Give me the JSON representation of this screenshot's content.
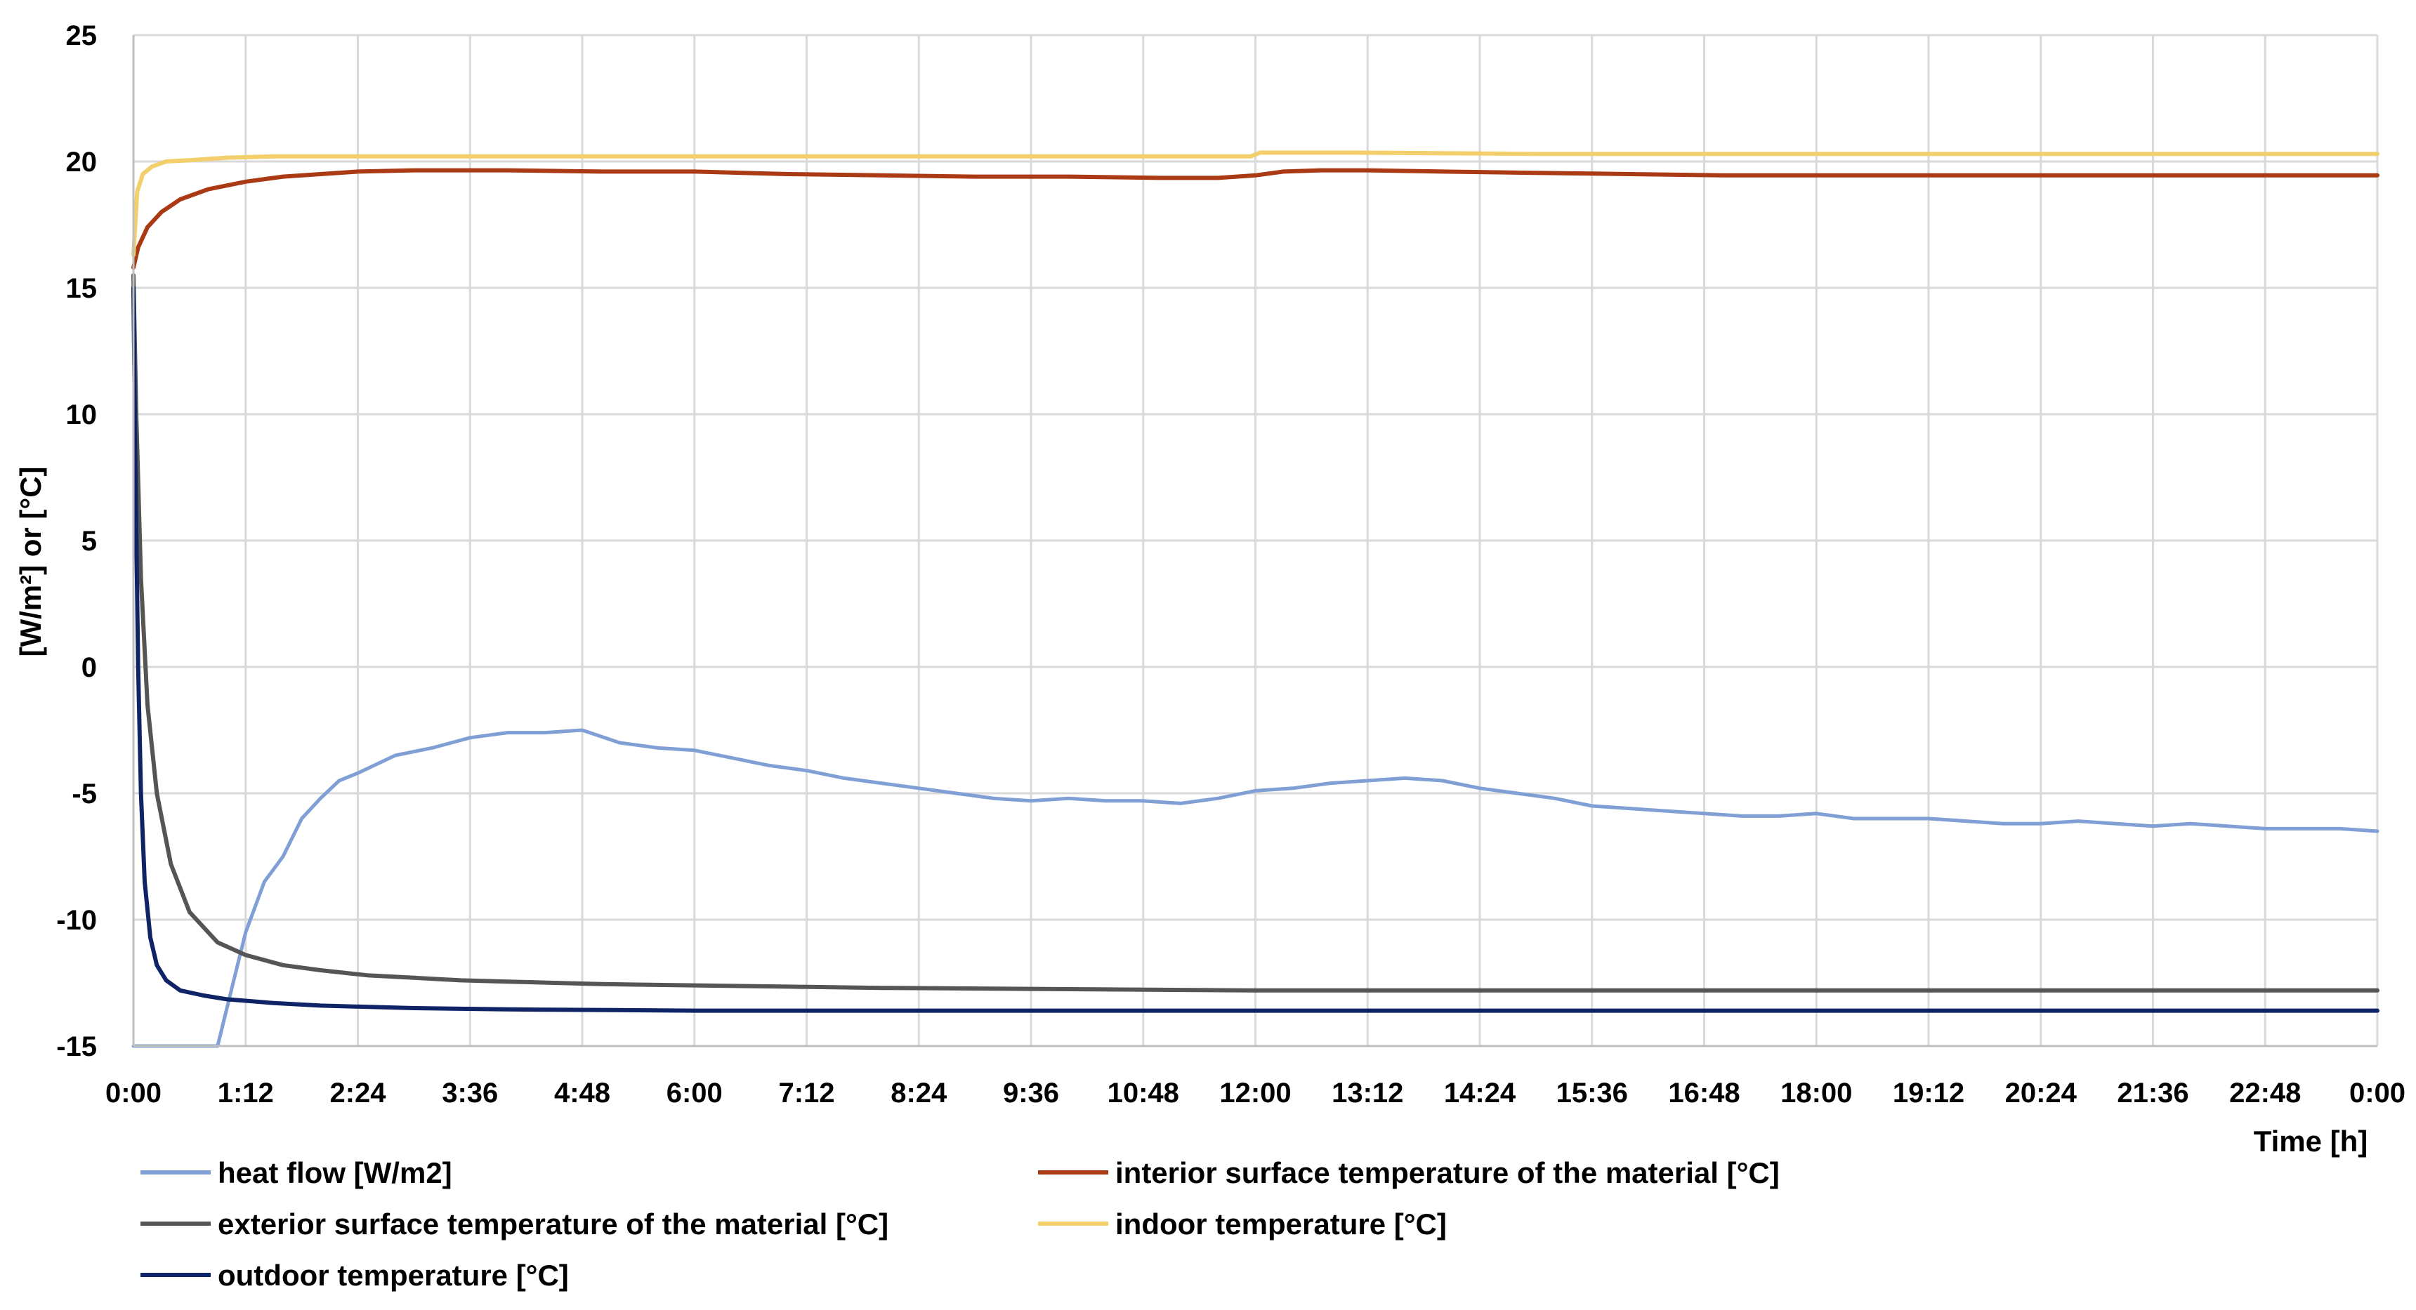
{
  "chart_data": {
    "type": "line",
    "title": "",
    "xlabel": "Time [h]",
    "ylabel": "[W/m²] or [°C]",
    "ylim": [
      -15,
      25
    ],
    "y_ticks": [
      25,
      20,
      15,
      10,
      5,
      0,
      -5,
      -10,
      -15
    ],
    "y_tick_labels": [
      "25",
      "20",
      "15",
      "10",
      "5",
      "0",
      "-5",
      "-10",
      "-15"
    ],
    "xlim_hours": [
      0,
      24
    ],
    "x_ticks_hours": [
      0,
      1.2,
      2.4,
      3.6,
      4.8,
      6,
      7.2,
      8.4,
      9.6,
      10.8,
      12,
      13.2,
      14.4,
      15.6,
      16.8,
      18,
      19.2,
      20.4,
      21.6,
      22.8,
      24
    ],
    "x_tick_labels": [
      "0:00",
      "1:12",
      "2:24",
      "3:36",
      "4:48",
      "6:00",
      "7:12",
      "8:24",
      "9:36",
      "10:48",
      "12:00",
      "13:12",
      "14:24",
      "15:36",
      "16:48",
      "18:00",
      "19:12",
      "20:24",
      "21:36",
      "22:48",
      "0:00"
    ],
    "grid": true,
    "legend_position": "bottom",
    "series": [
      {
        "name": "heat flow [W/m2]",
        "color": "#7f9fd5",
        "x": [
          0,
          0.9,
          1.0,
          1.1,
          1.2,
          1.4,
          1.6,
          1.8,
          2.0,
          2.2,
          2.4,
          2.8,
          3.2,
          3.6,
          4.0,
          4.4,
          4.8,
          5.2,
          5.6,
          6.0,
          6.4,
          6.8,
          7.2,
          7.6,
          8.0,
          8.4,
          8.8,
          9.2,
          9.6,
          10.0,
          10.4,
          10.8,
          11.2,
          11.6,
          12.0,
          12.4,
          12.8,
          13.2,
          13.6,
          14.0,
          14.4,
          14.8,
          15.2,
          15.6,
          16.0,
          16.4,
          16.8,
          17.2,
          17.6,
          18.0,
          18.4,
          18.8,
          19.2,
          19.6,
          20.0,
          20.4,
          20.8,
          21.2,
          21.6,
          22.0,
          22.4,
          22.8,
          23.2,
          23.6,
          24.0
        ],
        "y": [
          -15,
          -15,
          -13.5,
          -12,
          -10.5,
          -8.5,
          -7.5,
          -6,
          -5.2,
          -4.5,
          -4.2,
          -3.5,
          -3.2,
          -2.8,
          -2.6,
          -2.6,
          -2.5,
          -3.0,
          -3.2,
          -3.3,
          -3.6,
          -3.9,
          -4.1,
          -4.4,
          -4.6,
          -4.8,
          -5.0,
          -5.2,
          -5.3,
          -5.2,
          -5.3,
          -5.3,
          -5.4,
          -5.2,
          -4.9,
          -4.8,
          -4.6,
          -4.5,
          -4.4,
          -4.5,
          -4.8,
          -5.0,
          -5.2,
          -5.5,
          -5.6,
          -5.7,
          -5.8,
          -5.9,
          -5.9,
          -5.8,
          -6.0,
          -6.0,
          -6.0,
          -6.1,
          -6.2,
          -6.2,
          -6.1,
          -6.2,
          -6.3,
          -6.2,
          -6.3,
          -6.4,
          -6.4,
          -6.4,
          -6.5
        ]
      },
      {
        "name": "interior surface temperature of the material [°C]",
        "color": "#a93a14",
        "x": [
          0,
          0.05,
          0.15,
          0.3,
          0.5,
          0.8,
          1.2,
          1.6,
          2.0,
          2.4,
          3.0,
          4.0,
          5.0,
          6.0,
          7.0,
          8.0,
          9.0,
          10.0,
          11.0,
          11.6,
          12.0,
          12.3,
          12.7,
          13.2,
          14.0,
          15.0,
          16.0,
          17.0,
          18.0,
          19.0,
          20.0,
          21.0,
          22.0,
          23.0,
          24.0
        ],
        "y": [
          15.8,
          16.6,
          17.4,
          18.0,
          18.5,
          18.9,
          19.2,
          19.4,
          19.5,
          19.6,
          19.65,
          19.65,
          19.6,
          19.6,
          19.5,
          19.45,
          19.4,
          19.4,
          19.35,
          19.35,
          19.45,
          19.6,
          19.65,
          19.65,
          19.6,
          19.55,
          19.5,
          19.45,
          19.45,
          19.45,
          19.45,
          19.45,
          19.45,
          19.45,
          19.45
        ]
      },
      {
        "name": "exterior surface temperature of the material [°C]",
        "color": "#555555",
        "x": [
          0,
          0.03,
          0.08,
          0.15,
          0.25,
          0.4,
          0.6,
          0.9,
          1.2,
          1.6,
          2.0,
          2.5,
          3.0,
          3.5,
          4.0,
          5.0,
          6.0,
          7.0,
          8.0,
          10.0,
          12.0,
          14.0,
          16.0,
          18.0,
          20.0,
          22.0,
          24.0
        ],
        "y": [
          15.5,
          10.0,
          3.5,
          -1.5,
          -5.0,
          -7.8,
          -9.7,
          -10.9,
          -11.4,
          -11.8,
          -12.0,
          -12.2,
          -12.3,
          -12.4,
          -12.45,
          -12.55,
          -12.6,
          -12.65,
          -12.7,
          -12.75,
          -12.8,
          -12.8,
          -12.8,
          -12.8,
          -12.8,
          -12.8,
          -12.8
        ]
      },
      {
        "name": "indoor temperature [°C]",
        "color": "#f2cf6b",
        "x": [
          0,
          0.04,
          0.1,
          0.2,
          0.35,
          0.6,
          1.0,
          1.5,
          2.0,
          3.0,
          4.0,
          6.0,
          8.0,
          10.0,
          11.95,
          12.05,
          13.0,
          15.0,
          18.0,
          21.0,
          24.0
        ],
        "y": [
          16.3,
          18.8,
          19.5,
          19.8,
          20.0,
          20.05,
          20.15,
          20.2,
          20.2,
          20.2,
          20.2,
          20.2,
          20.2,
          20.2,
          20.2,
          20.35,
          20.35,
          20.3,
          20.3,
          20.3,
          20.3
        ]
      },
      {
        "name": "outdoor temperature [°C]",
        "color": "#0f2466",
        "x": [
          0,
          0.02,
          0.05,
          0.08,
          0.12,
          0.18,
          0.25,
          0.35,
          0.5,
          0.75,
          1.0,
          1.5,
          2.0,
          3.0,
          4.0,
          6.0,
          8.0,
          10.0,
          12.0,
          16.0,
          20.0,
          24.0
        ],
        "y": [
          15.0,
          8.0,
          0.0,
          -5.0,
          -8.5,
          -10.7,
          -11.8,
          -12.4,
          -12.8,
          -13.0,
          -13.15,
          -13.3,
          -13.4,
          -13.5,
          -13.55,
          -13.6,
          -13.6,
          -13.6,
          -13.6,
          -13.6,
          -13.6,
          -13.6
        ]
      }
    ]
  }
}
